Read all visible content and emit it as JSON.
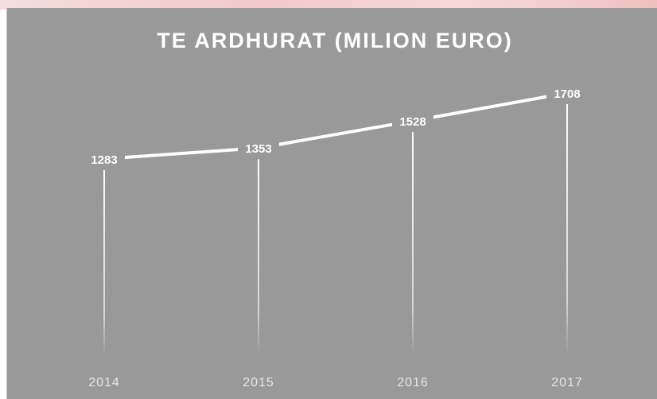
{
  "chart_data": {
    "type": "line",
    "title": "TE ARDHURAT (MILION EURO)",
    "categories": [
      "2014",
      "2015",
      "2016",
      "2017"
    ],
    "values": [
      1283,
      1353,
      1528,
      1708
    ],
    "color": "#ffffff"
  }
}
